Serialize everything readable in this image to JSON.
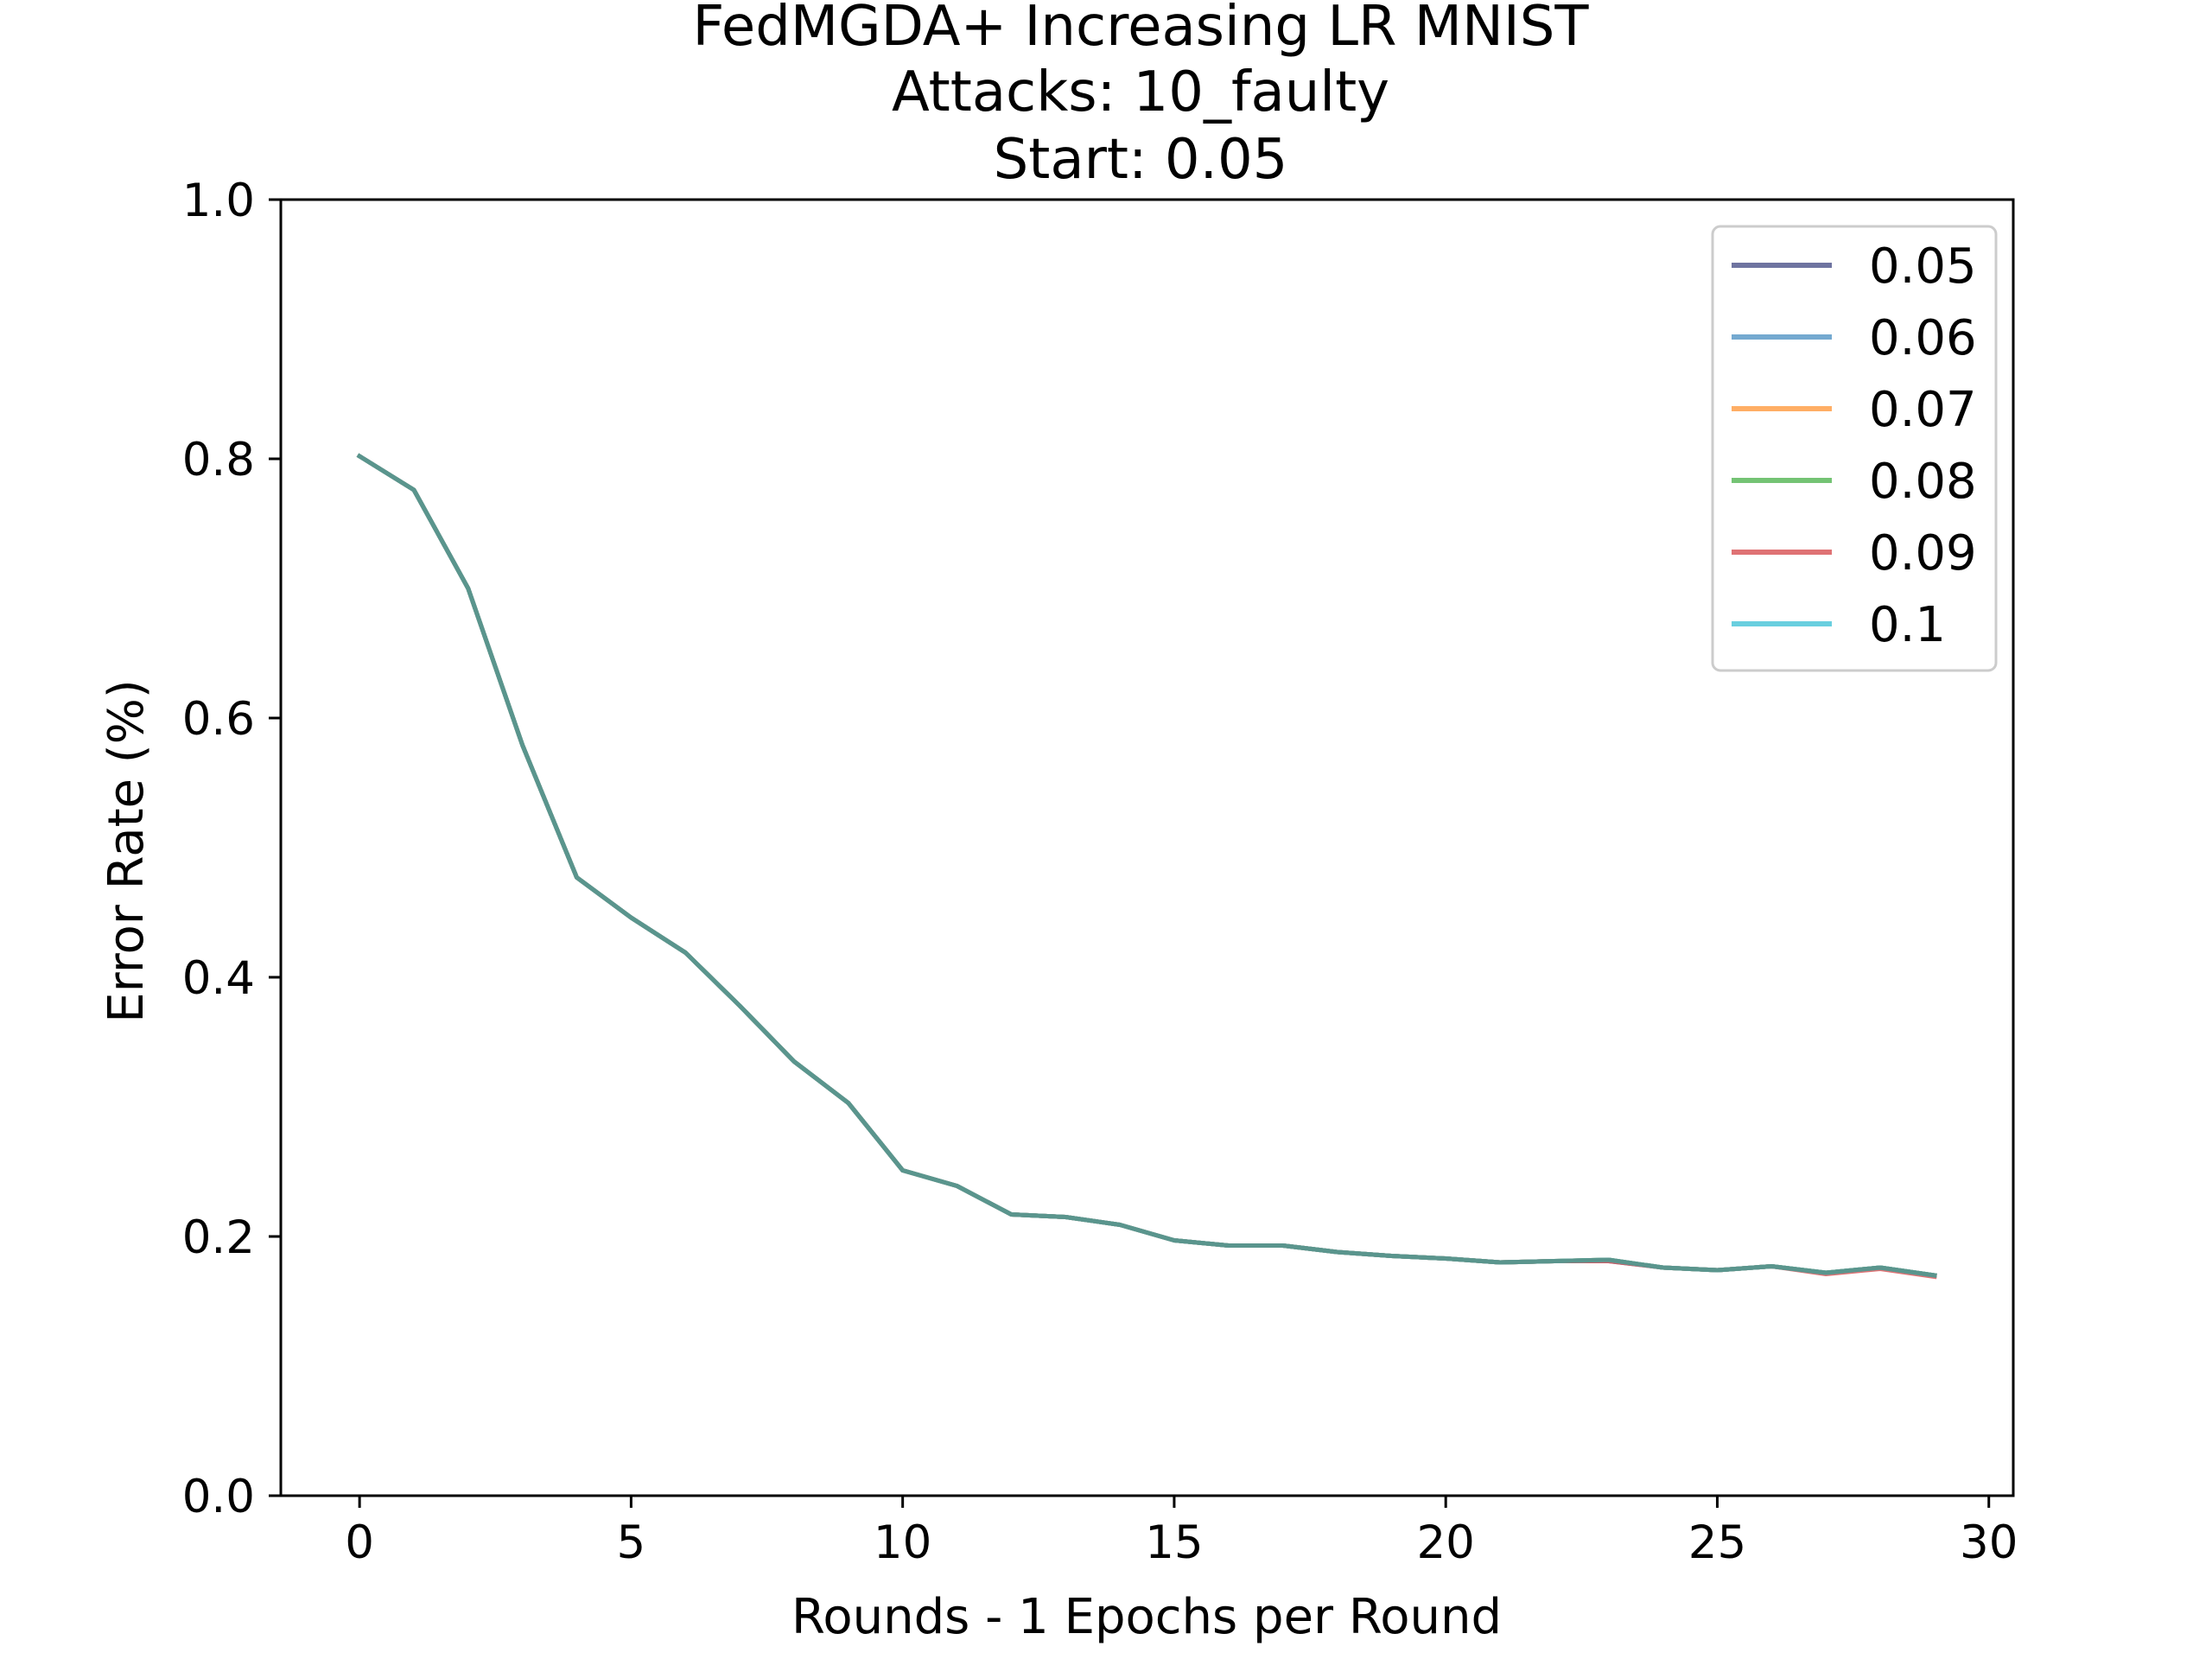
{
  "chart_data": {
    "type": "line",
    "title_lines": [
      "FedMGDA+ Increasing LR MNIST",
      "Attacks: 10_faulty",
      "Start: 0.05"
    ],
    "xlabel": "Rounds - 1 Epochs per Round",
    "ylabel": "Error Rate (%)",
    "xlim": [
      -1.45,
      30.45
    ],
    "ylim": [
      0,
      1
    ],
    "xticks": [
      0,
      5,
      10,
      15,
      20,
      25,
      30
    ],
    "xtick_labels": [
      "0",
      "5",
      "10",
      "15",
      "20",
      "25",
      "30"
    ],
    "yticks": [
      0.0,
      0.2,
      0.4,
      0.6,
      0.8,
      1.0
    ],
    "ytick_labels": [
      "0.0",
      "0.2",
      "0.4",
      "0.6",
      "0.8",
      "1.0"
    ],
    "grid": false,
    "legend_position": "upper right",
    "x": [
      0,
      1,
      2,
      3,
      4,
      5,
      6,
      7,
      8,
      9,
      10,
      11,
      12,
      13,
      14,
      15,
      16,
      17,
      18,
      19,
      20,
      21,
      22,
      23,
      24,
      25,
      26,
      27,
      28,
      29
    ],
    "series": [
      {
        "name": "0.05",
        "color": "#555a8f",
        "values": [
          0.802,
          0.776,
          0.7,
          0.579,
          0.477,
          0.446,
          0.419,
          0.378,
          0.335,
          0.303,
          0.251,
          0.239,
          0.217,
          0.215,
          0.209,
          0.197,
          0.193,
          0.193,
          0.188,
          0.185,
          0.183,
          0.18,
          0.181,
          0.181,
          0.176,
          0.174,
          0.177,
          0.172,
          0.176,
          0.17
        ]
      },
      {
        "name": "0.06",
        "color": "#5c9ac8",
        "values": [
          0.802,
          0.776,
          0.7,
          0.579,
          0.477,
          0.446,
          0.419,
          0.378,
          0.335,
          0.303,
          0.251,
          0.239,
          0.217,
          0.215,
          0.209,
          0.197,
          0.193,
          0.193,
          0.188,
          0.185,
          0.183,
          0.18,
          0.181,
          0.182,
          0.176,
          0.174,
          0.177,
          0.172,
          0.176,
          0.17
        ]
      },
      {
        "name": "0.07",
        "color": "#ffa04a",
        "values": [
          0.802,
          0.776,
          0.7,
          0.579,
          0.477,
          0.446,
          0.419,
          0.378,
          0.335,
          0.303,
          0.251,
          0.239,
          0.217,
          0.215,
          0.209,
          0.197,
          0.193,
          0.193,
          0.188,
          0.185,
          0.183,
          0.18,
          0.181,
          0.182,
          0.176,
          0.174,
          0.177,
          0.172,
          0.176,
          0.17
        ]
      },
      {
        "name": "0.08",
        "color": "#5cb85c",
        "values": [
          0.802,
          0.776,
          0.7,
          0.579,
          0.477,
          0.446,
          0.419,
          0.378,
          0.335,
          0.303,
          0.251,
          0.239,
          0.217,
          0.215,
          0.209,
          0.197,
          0.193,
          0.193,
          0.188,
          0.185,
          0.183,
          0.18,
          0.181,
          0.182,
          0.176,
          0.174,
          0.177,
          0.172,
          0.176,
          0.17
        ]
      },
      {
        "name": "0.09",
        "color": "#d9595c",
        "values": [
          0.802,
          0.776,
          0.7,
          0.579,
          0.477,
          0.446,
          0.419,
          0.378,
          0.335,
          0.303,
          0.251,
          0.239,
          0.217,
          0.215,
          0.209,
          0.197,
          0.193,
          0.193,
          0.188,
          0.185,
          0.183,
          0.18,
          0.181,
          0.181,
          0.176,
          0.174,
          0.177,
          0.171,
          0.175,
          0.169
        ]
      },
      {
        "name": "0.1",
        "color": "#4fc7d9",
        "values": [
          0.802,
          0.776,
          0.7,
          0.579,
          0.477,
          0.446,
          0.419,
          0.378,
          0.335,
          0.303,
          0.251,
          0.239,
          0.217,
          0.215,
          0.209,
          0.197,
          0.193,
          0.193,
          0.188,
          0.185,
          0.183,
          0.18,
          0.181,
          0.182,
          0.176,
          0.174,
          0.177,
          0.172,
          0.176,
          0.17
        ]
      }
    ],
    "visible_line_color": "#5a958d"
  }
}
